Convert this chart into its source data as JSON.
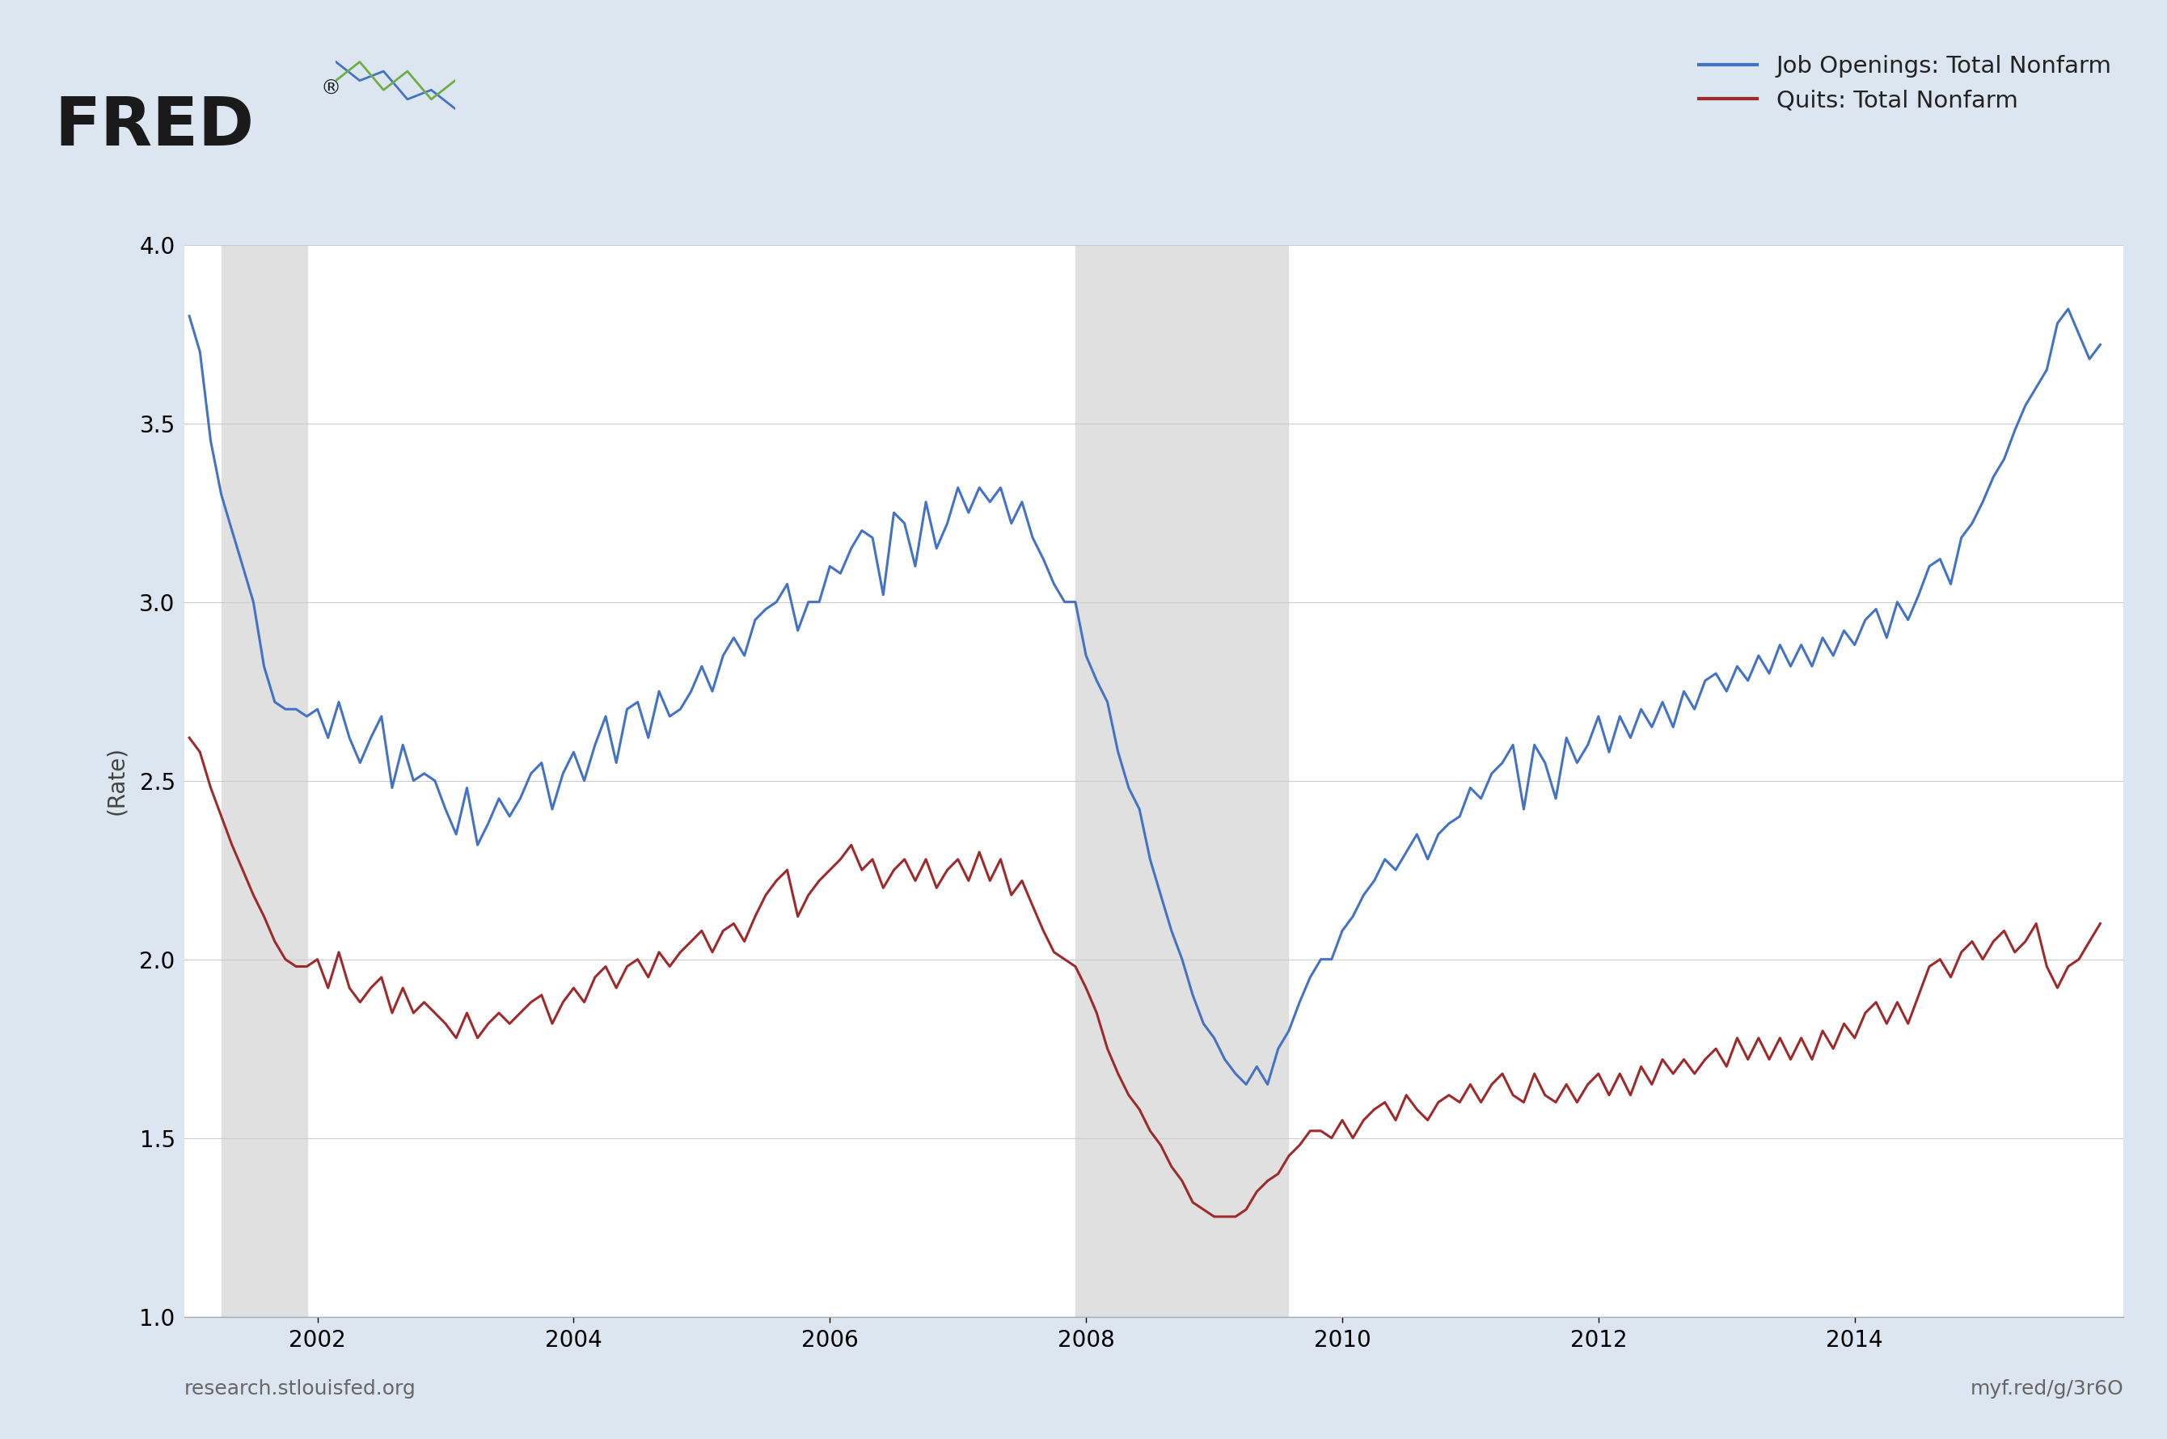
{
  "background_color": "#dce6f0",
  "plot_bg_color": "#ffffff",
  "ylabel": "(Rate)",
  "ylim": [
    1.0,
    4.0
  ],
  "yticks": [
    1.0,
    1.5,
    2.0,
    2.5,
    3.0,
    3.5,
    4.0
  ],
  "xlim": [
    2000.96,
    2016.1
  ],
  "footer_left": "research.stlouisfed.org",
  "footer_right": "myf.red/g/3r6O",
  "legend_entries": [
    "Job Openings: Total Nonfarm",
    "Quits: Total Nonfarm"
  ],
  "line_colors": [
    "#4472c4",
    "#9e2a2b"
  ],
  "recession_color": "#e0e0e0",
  "recession_shades": [
    {
      "start": 2001.25,
      "end": 2001.92
    },
    {
      "start": 2007.92,
      "end": 2009.58
    }
  ],
  "xtick_years": [
    2002,
    2004,
    2006,
    2008,
    2010,
    2012,
    2014
  ],
  "job_openings": [
    [
      2001.0,
      3.8
    ],
    [
      2001.083,
      3.7
    ],
    [
      2001.167,
      3.45
    ],
    [
      2001.25,
      3.3
    ],
    [
      2001.333,
      3.2
    ],
    [
      2001.417,
      3.1
    ],
    [
      2001.5,
      3.0
    ],
    [
      2001.583,
      2.82
    ],
    [
      2001.667,
      2.72
    ],
    [
      2001.75,
      2.7
    ],
    [
      2001.833,
      2.7
    ],
    [
      2001.917,
      2.68
    ],
    [
      2002.0,
      2.7
    ],
    [
      2002.083,
      2.62
    ],
    [
      2002.167,
      2.72
    ],
    [
      2002.25,
      2.62
    ],
    [
      2002.333,
      2.55
    ],
    [
      2002.417,
      2.62
    ],
    [
      2002.5,
      2.68
    ],
    [
      2002.583,
      2.48
    ],
    [
      2002.667,
      2.6
    ],
    [
      2002.75,
      2.5
    ],
    [
      2002.833,
      2.52
    ],
    [
      2002.917,
      2.5
    ],
    [
      2003.0,
      2.42
    ],
    [
      2003.083,
      2.35
    ],
    [
      2003.167,
      2.48
    ],
    [
      2003.25,
      2.32
    ],
    [
      2003.333,
      2.38
    ],
    [
      2003.417,
      2.45
    ],
    [
      2003.5,
      2.4
    ],
    [
      2003.583,
      2.45
    ],
    [
      2003.667,
      2.52
    ],
    [
      2003.75,
      2.55
    ],
    [
      2003.833,
      2.42
    ],
    [
      2003.917,
      2.52
    ],
    [
      2004.0,
      2.58
    ],
    [
      2004.083,
      2.5
    ],
    [
      2004.167,
      2.6
    ],
    [
      2004.25,
      2.68
    ],
    [
      2004.333,
      2.55
    ],
    [
      2004.417,
      2.7
    ],
    [
      2004.5,
      2.72
    ],
    [
      2004.583,
      2.62
    ],
    [
      2004.667,
      2.75
    ],
    [
      2004.75,
      2.68
    ],
    [
      2004.833,
      2.7
    ],
    [
      2004.917,
      2.75
    ],
    [
      2005.0,
      2.82
    ],
    [
      2005.083,
      2.75
    ],
    [
      2005.167,
      2.85
    ],
    [
      2005.25,
      2.9
    ],
    [
      2005.333,
      2.85
    ],
    [
      2005.417,
      2.95
    ],
    [
      2005.5,
      2.98
    ],
    [
      2005.583,
      3.0
    ],
    [
      2005.667,
      3.05
    ],
    [
      2005.75,
      2.92
    ],
    [
      2005.833,
      3.0
    ],
    [
      2005.917,
      3.0
    ],
    [
      2006.0,
      3.1
    ],
    [
      2006.083,
      3.08
    ],
    [
      2006.167,
      3.15
    ],
    [
      2006.25,
      3.2
    ],
    [
      2006.333,
      3.18
    ],
    [
      2006.417,
      3.02
    ],
    [
      2006.5,
      3.25
    ],
    [
      2006.583,
      3.22
    ],
    [
      2006.667,
      3.1
    ],
    [
      2006.75,
      3.28
    ],
    [
      2006.833,
      3.15
    ],
    [
      2006.917,
      3.22
    ],
    [
      2007.0,
      3.32
    ],
    [
      2007.083,
      3.25
    ],
    [
      2007.167,
      3.32
    ],
    [
      2007.25,
      3.28
    ],
    [
      2007.333,
      3.32
    ],
    [
      2007.417,
      3.22
    ],
    [
      2007.5,
      3.28
    ],
    [
      2007.583,
      3.18
    ],
    [
      2007.667,
      3.12
    ],
    [
      2007.75,
      3.05
    ],
    [
      2007.833,
      3.0
    ],
    [
      2007.917,
      3.0
    ],
    [
      2008.0,
      2.85
    ],
    [
      2008.083,
      2.78
    ],
    [
      2008.167,
      2.72
    ],
    [
      2008.25,
      2.58
    ],
    [
      2008.333,
      2.48
    ],
    [
      2008.417,
      2.42
    ],
    [
      2008.5,
      2.28
    ],
    [
      2008.583,
      2.18
    ],
    [
      2008.667,
      2.08
    ],
    [
      2008.75,
      2.0
    ],
    [
      2008.833,
      1.9
    ],
    [
      2008.917,
      1.82
    ],
    [
      2009.0,
      1.78
    ],
    [
      2009.083,
      1.72
    ],
    [
      2009.167,
      1.68
    ],
    [
      2009.25,
      1.65
    ],
    [
      2009.333,
      1.7
    ],
    [
      2009.417,
      1.65
    ],
    [
      2009.5,
      1.75
    ],
    [
      2009.583,
      1.8
    ],
    [
      2009.667,
      1.88
    ],
    [
      2009.75,
      1.95
    ],
    [
      2009.833,
      2.0
    ],
    [
      2009.917,
      2.0
    ],
    [
      2010.0,
      2.08
    ],
    [
      2010.083,
      2.12
    ],
    [
      2010.167,
      2.18
    ],
    [
      2010.25,
      2.22
    ],
    [
      2010.333,
      2.28
    ],
    [
      2010.417,
      2.25
    ],
    [
      2010.5,
      2.3
    ],
    [
      2010.583,
      2.35
    ],
    [
      2010.667,
      2.28
    ],
    [
      2010.75,
      2.35
    ],
    [
      2010.833,
      2.38
    ],
    [
      2010.917,
      2.4
    ],
    [
      2011.0,
      2.48
    ],
    [
      2011.083,
      2.45
    ],
    [
      2011.167,
      2.52
    ],
    [
      2011.25,
      2.55
    ],
    [
      2011.333,
      2.6
    ],
    [
      2011.417,
      2.42
    ],
    [
      2011.5,
      2.6
    ],
    [
      2011.583,
      2.55
    ],
    [
      2011.667,
      2.45
    ],
    [
      2011.75,
      2.62
    ],
    [
      2011.833,
      2.55
    ],
    [
      2011.917,
      2.6
    ],
    [
      2012.0,
      2.68
    ],
    [
      2012.083,
      2.58
    ],
    [
      2012.167,
      2.68
    ],
    [
      2012.25,
      2.62
    ],
    [
      2012.333,
      2.7
    ],
    [
      2012.417,
      2.65
    ],
    [
      2012.5,
      2.72
    ],
    [
      2012.583,
      2.65
    ],
    [
      2012.667,
      2.75
    ],
    [
      2012.75,
      2.7
    ],
    [
      2012.833,
      2.78
    ],
    [
      2012.917,
      2.8
    ],
    [
      2013.0,
      2.75
    ],
    [
      2013.083,
      2.82
    ],
    [
      2013.167,
      2.78
    ],
    [
      2013.25,
      2.85
    ],
    [
      2013.333,
      2.8
    ],
    [
      2013.417,
      2.88
    ],
    [
      2013.5,
      2.82
    ],
    [
      2013.583,
      2.88
    ],
    [
      2013.667,
      2.82
    ],
    [
      2013.75,
      2.9
    ],
    [
      2013.833,
      2.85
    ],
    [
      2013.917,
      2.92
    ],
    [
      2014.0,
      2.88
    ],
    [
      2014.083,
      2.95
    ],
    [
      2014.167,
      2.98
    ],
    [
      2014.25,
      2.9
    ],
    [
      2014.333,
      3.0
    ],
    [
      2014.417,
      2.95
    ],
    [
      2014.5,
      3.02
    ],
    [
      2014.583,
      3.1
    ],
    [
      2014.667,
      3.12
    ],
    [
      2014.75,
      3.05
    ],
    [
      2014.833,
      3.18
    ],
    [
      2014.917,
      3.22
    ],
    [
      2015.0,
      3.28
    ],
    [
      2015.083,
      3.35
    ],
    [
      2015.167,
      3.4
    ],
    [
      2015.25,
      3.48
    ],
    [
      2015.333,
      3.55
    ],
    [
      2015.417,
      3.6
    ],
    [
      2015.5,
      3.65
    ],
    [
      2015.583,
      3.78
    ],
    [
      2015.667,
      3.82
    ],
    [
      2015.75,
      3.75
    ],
    [
      2015.833,
      3.68
    ],
    [
      2015.917,
      3.72
    ]
  ],
  "quits": [
    [
      2001.0,
      2.62
    ],
    [
      2001.083,
      2.58
    ],
    [
      2001.167,
      2.48
    ],
    [
      2001.25,
      2.4
    ],
    [
      2001.333,
      2.32
    ],
    [
      2001.417,
      2.25
    ],
    [
      2001.5,
      2.18
    ],
    [
      2001.583,
      2.12
    ],
    [
      2001.667,
      2.05
    ],
    [
      2001.75,
      2.0
    ],
    [
      2001.833,
      1.98
    ],
    [
      2001.917,
      1.98
    ],
    [
      2002.0,
      2.0
    ],
    [
      2002.083,
      1.92
    ],
    [
      2002.167,
      2.02
    ],
    [
      2002.25,
      1.92
    ],
    [
      2002.333,
      1.88
    ],
    [
      2002.417,
      1.92
    ],
    [
      2002.5,
      1.95
    ],
    [
      2002.583,
      1.85
    ],
    [
      2002.667,
      1.92
    ],
    [
      2002.75,
      1.85
    ],
    [
      2002.833,
      1.88
    ],
    [
      2002.917,
      1.85
    ],
    [
      2003.0,
      1.82
    ],
    [
      2003.083,
      1.78
    ],
    [
      2003.167,
      1.85
    ],
    [
      2003.25,
      1.78
    ],
    [
      2003.333,
      1.82
    ],
    [
      2003.417,
      1.85
    ],
    [
      2003.5,
      1.82
    ],
    [
      2003.583,
      1.85
    ],
    [
      2003.667,
      1.88
    ],
    [
      2003.75,
      1.9
    ],
    [
      2003.833,
      1.82
    ],
    [
      2003.917,
      1.88
    ],
    [
      2004.0,
      1.92
    ],
    [
      2004.083,
      1.88
    ],
    [
      2004.167,
      1.95
    ],
    [
      2004.25,
      1.98
    ],
    [
      2004.333,
      1.92
    ],
    [
      2004.417,
      1.98
    ],
    [
      2004.5,
      2.0
    ],
    [
      2004.583,
      1.95
    ],
    [
      2004.667,
      2.02
    ],
    [
      2004.75,
      1.98
    ],
    [
      2004.833,
      2.02
    ],
    [
      2004.917,
      2.05
    ],
    [
      2005.0,
      2.08
    ],
    [
      2005.083,
      2.02
    ],
    [
      2005.167,
      2.08
    ],
    [
      2005.25,
      2.1
    ],
    [
      2005.333,
      2.05
    ],
    [
      2005.417,
      2.12
    ],
    [
      2005.5,
      2.18
    ],
    [
      2005.583,
      2.22
    ],
    [
      2005.667,
      2.25
    ],
    [
      2005.75,
      2.12
    ],
    [
      2005.833,
      2.18
    ],
    [
      2005.917,
      2.22
    ],
    [
      2006.0,
      2.25
    ],
    [
      2006.083,
      2.28
    ],
    [
      2006.167,
      2.32
    ],
    [
      2006.25,
      2.25
    ],
    [
      2006.333,
      2.28
    ],
    [
      2006.417,
      2.2
    ],
    [
      2006.5,
      2.25
    ],
    [
      2006.583,
      2.28
    ],
    [
      2006.667,
      2.22
    ],
    [
      2006.75,
      2.28
    ],
    [
      2006.833,
      2.2
    ],
    [
      2006.917,
      2.25
    ],
    [
      2007.0,
      2.28
    ],
    [
      2007.083,
      2.22
    ],
    [
      2007.167,
      2.3
    ],
    [
      2007.25,
      2.22
    ],
    [
      2007.333,
      2.28
    ],
    [
      2007.417,
      2.18
    ],
    [
      2007.5,
      2.22
    ],
    [
      2007.583,
      2.15
    ],
    [
      2007.667,
      2.08
    ],
    [
      2007.75,
      2.02
    ],
    [
      2007.833,
      2.0
    ],
    [
      2007.917,
      1.98
    ],
    [
      2008.0,
      1.92
    ],
    [
      2008.083,
      1.85
    ],
    [
      2008.167,
      1.75
    ],
    [
      2008.25,
      1.68
    ],
    [
      2008.333,
      1.62
    ],
    [
      2008.417,
      1.58
    ],
    [
      2008.5,
      1.52
    ],
    [
      2008.583,
      1.48
    ],
    [
      2008.667,
      1.42
    ],
    [
      2008.75,
      1.38
    ],
    [
      2008.833,
      1.32
    ],
    [
      2008.917,
      1.3
    ],
    [
      2009.0,
      1.28
    ],
    [
      2009.083,
      1.28
    ],
    [
      2009.167,
      1.28
    ],
    [
      2009.25,
      1.3
    ],
    [
      2009.333,
      1.35
    ],
    [
      2009.417,
      1.38
    ],
    [
      2009.5,
      1.4
    ],
    [
      2009.583,
      1.45
    ],
    [
      2009.667,
      1.48
    ],
    [
      2009.75,
      1.52
    ],
    [
      2009.833,
      1.52
    ],
    [
      2009.917,
      1.5
    ],
    [
      2010.0,
      1.55
    ],
    [
      2010.083,
      1.5
    ],
    [
      2010.167,
      1.55
    ],
    [
      2010.25,
      1.58
    ],
    [
      2010.333,
      1.6
    ],
    [
      2010.417,
      1.55
    ],
    [
      2010.5,
      1.62
    ],
    [
      2010.583,
      1.58
    ],
    [
      2010.667,
      1.55
    ],
    [
      2010.75,
      1.6
    ],
    [
      2010.833,
      1.62
    ],
    [
      2010.917,
      1.6
    ],
    [
      2011.0,
      1.65
    ],
    [
      2011.083,
      1.6
    ],
    [
      2011.167,
      1.65
    ],
    [
      2011.25,
      1.68
    ],
    [
      2011.333,
      1.62
    ],
    [
      2011.417,
      1.6
    ],
    [
      2011.5,
      1.68
    ],
    [
      2011.583,
      1.62
    ],
    [
      2011.667,
      1.6
    ],
    [
      2011.75,
      1.65
    ],
    [
      2011.833,
      1.6
    ],
    [
      2011.917,
      1.65
    ],
    [
      2012.0,
      1.68
    ],
    [
      2012.083,
      1.62
    ],
    [
      2012.167,
      1.68
    ],
    [
      2012.25,
      1.62
    ],
    [
      2012.333,
      1.7
    ],
    [
      2012.417,
      1.65
    ],
    [
      2012.5,
      1.72
    ],
    [
      2012.583,
      1.68
    ],
    [
      2012.667,
      1.72
    ],
    [
      2012.75,
      1.68
    ],
    [
      2012.833,
      1.72
    ],
    [
      2012.917,
      1.75
    ],
    [
      2013.0,
      1.7
    ],
    [
      2013.083,
      1.78
    ],
    [
      2013.167,
      1.72
    ],
    [
      2013.25,
      1.78
    ],
    [
      2013.333,
      1.72
    ],
    [
      2013.417,
      1.78
    ],
    [
      2013.5,
      1.72
    ],
    [
      2013.583,
      1.78
    ],
    [
      2013.667,
      1.72
    ],
    [
      2013.75,
      1.8
    ],
    [
      2013.833,
      1.75
    ],
    [
      2013.917,
      1.82
    ],
    [
      2014.0,
      1.78
    ],
    [
      2014.083,
      1.85
    ],
    [
      2014.167,
      1.88
    ],
    [
      2014.25,
      1.82
    ],
    [
      2014.333,
      1.88
    ],
    [
      2014.417,
      1.82
    ],
    [
      2014.5,
      1.9
    ],
    [
      2014.583,
      1.98
    ],
    [
      2014.667,
      2.0
    ],
    [
      2014.75,
      1.95
    ],
    [
      2014.833,
      2.02
    ],
    [
      2014.917,
      2.05
    ],
    [
      2015.0,
      2.0
    ],
    [
      2015.083,
      2.05
    ],
    [
      2015.167,
      2.08
    ],
    [
      2015.25,
      2.02
    ],
    [
      2015.333,
      2.05
    ],
    [
      2015.417,
      2.1
    ],
    [
      2015.5,
      1.98
    ],
    [
      2015.583,
      1.92
    ],
    [
      2015.667,
      1.98
    ],
    [
      2015.75,
      2.0
    ],
    [
      2015.833,
      2.05
    ],
    [
      2015.917,
      2.1
    ]
  ]
}
